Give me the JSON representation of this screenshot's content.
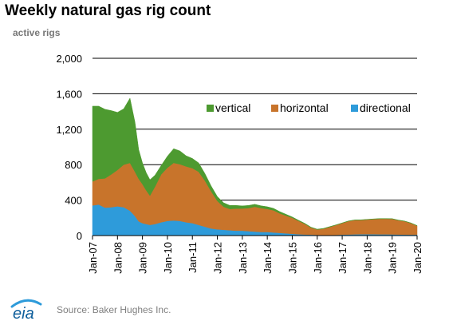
{
  "chart_data": {
    "type": "area",
    "stacked": true,
    "title": "Weekly natural gas rig count",
    "ylabel": "active rigs",
    "xlabel": "",
    "ylim": [
      0,
      2000
    ],
    "yticks": [
      "0",
      "400",
      "800",
      "1,200",
      "1,600",
      "2,000"
    ],
    "ytick_values": [
      0,
      400,
      800,
      1200,
      1600,
      2000
    ],
    "xticks": [
      "Jan-07",
      "Jan-08",
      "Jan-09",
      "Jan-10",
      "Jan-11",
      "Jan-12",
      "Jan-13",
      "Jan-14",
      "Jan-15",
      "Jan-16",
      "Jan-17",
      "Jan-18",
      "Jan-19",
      "Jan-20"
    ],
    "xtick_values": [
      2007,
      2008,
      2009,
      2010,
      2011,
      2012,
      2013,
      2014,
      2015,
      2016,
      2017,
      2018,
      2019,
      2020
    ],
    "grid": true,
    "legend": "top-right",
    "x": [
      2007.0,
      2007.25,
      2007.5,
      2007.75,
      2008.0,
      2008.25,
      2008.5,
      2008.7,
      2008.85,
      2009.0,
      2009.15,
      2009.3,
      2009.5,
      2009.75,
      2010.0,
      2010.25,
      2010.5,
      2010.75,
      2011.0,
      2011.25,
      2011.5,
      2011.75,
      2012.0,
      2012.25,
      2012.5,
      2012.75,
      2013.0,
      2013.25,
      2013.5,
      2013.75,
      2014.0,
      2014.25,
      2014.5,
      2014.75,
      2015.0,
      2015.25,
      2015.5,
      2015.75,
      2016.0,
      2016.25,
      2016.5,
      2016.75,
      2017.0,
      2017.25,
      2017.5,
      2017.75,
      2018.0,
      2018.25,
      2018.5,
      2018.75,
      2019.0,
      2019.25,
      2019.5,
      2019.75,
      2020.0
    ],
    "series": [
      {
        "name": "directional",
        "color": "#2E9BDA",
        "values": [
          340,
          350,
          315,
          320,
          330,
          320,
          280,
          220,
          160,
          140,
          130,
          120,
          130,
          150,
          165,
          170,
          165,
          150,
          140,
          120,
          100,
          80,
          70,
          65,
          60,
          55,
          55,
          50,
          45,
          40,
          40,
          35,
          30,
          25,
          20,
          15,
          12,
          10,
          8,
          7,
          7,
          8,
          10,
          12,
          14,
          15,
          15,
          15,
          14,
          14,
          13,
          12,
          11,
          10,
          10
        ]
      },
      {
        "name": "horizontal",
        "color": "#C8742B",
        "values": [
          270,
          290,
          330,
          370,
          410,
          480,
          540,
          500,
          480,
          440,
          380,
          330,
          420,
          540,
          600,
          650,
          640,
          630,
          620,
          600,
          520,
          420,
          320,
          260,
          240,
          250,
          250,
          260,
          280,
          270,
          260,
          250,
          220,
          200,
          180,
          150,
          120,
          80,
          60,
          70,
          90,
          110,
          130,
          150,
          160,
          160,
          165,
          170,
          175,
          175,
          175,
          160,
          150,
          130,
          100
        ]
      },
      {
        "name": "vertical",
        "color": "#4D9A30",
        "values": [
          850,
          820,
          780,
          720,
          650,
          630,
          730,
          560,
          330,
          240,
          200,
          180,
          130,
          100,
          130,
          160,
          150,
          120,
          110,
          100,
          80,
          60,
          50,
          45,
          40,
          35,
          30,
          30,
          28,
          26,
          25,
          22,
          20,
          15,
          10,
          8,
          6,
          5,
          4,
          4,
          4,
          3,
          3,
          3,
          3,
          3,
          3,
          3,
          3,
          3,
          3,
          3,
          3,
          3,
          3
        ]
      }
    ],
    "source": "Source: Baker Hughes Inc."
  },
  "colors": {
    "vertical": "#4D9A30",
    "horizontal": "#C8742B",
    "directional": "#2E9BDA",
    "gridline": "#000000",
    "logo_blue": "#2E9BDA",
    "logo_text": "#0E5E9B"
  },
  "logo": {
    "text": "eia",
    "icon": "eia-logo-icon"
  }
}
